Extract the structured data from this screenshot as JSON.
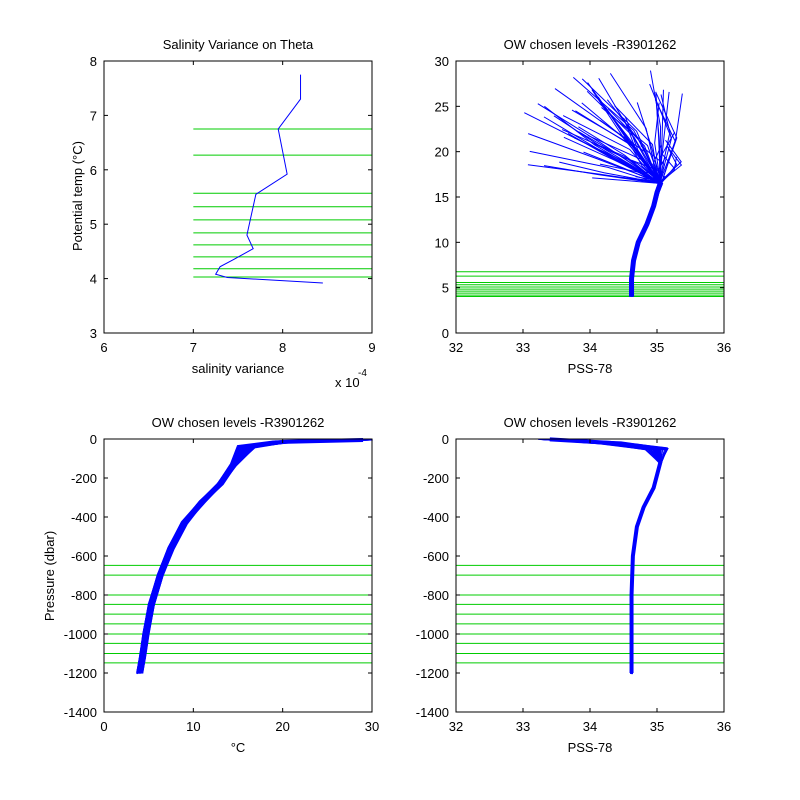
{
  "chart_data": [
    {
      "id": "salvar",
      "type": "line",
      "title": "Salinity Variance on Theta",
      "xlabel": "salinity variance",
      "ylabel": "Potential temp (°C)",
      "xlim": [
        6,
        9
      ],
      "ylim": [
        3,
        8
      ],
      "xticks": [
        "6",
        "7",
        "8",
        "9"
      ],
      "yticks": [
        "3",
        "4",
        "5",
        "6",
        "7",
        "8"
      ],
      "x_exponent_label": "x 10",
      "x_exponent_power": "-4",
      "series": [
        {
          "color": "#0000ff",
          "x": [
            8.2,
            8.2,
            7.95,
            8.05,
            7.7,
            7.6,
            7.67,
            7.45,
            7.3,
            7.25,
            7.38,
            8.45
          ],
          "y": [
            7.75,
            7.3,
            6.75,
            5.92,
            5.55,
            4.8,
            4.55,
            4.35,
            4.22,
            4.08,
            4.02,
            3.92
          ]
        }
      ],
      "level_lines": {
        "color": "#00cc00",
        "x_range": [
          7,
          9
        ],
        "y": [
          6.75,
          6.27,
          5.57,
          5.32,
          5.08,
          4.84,
          4.62,
          4.4,
          4.18,
          4.03
        ]
      }
    },
    {
      "id": "ts",
      "type": "line",
      "title": "OW chosen levels -R3901262",
      "xlabel": "PSS-78",
      "ylabel": "",
      "xlim": [
        32,
        36
      ],
      "ylim": [
        0,
        30
      ],
      "xticks": [
        "32",
        "33",
        "34",
        "35",
        "36"
      ],
      "yticks": [
        "0",
        "5",
        "10",
        "15",
        "20",
        "25",
        "30"
      ],
      "series": [
        {
          "color": "#0000ff",
          "description_count": 90,
          "x": [
            34.62,
            34.62,
            34.65,
            34.72,
            34.85,
            34.95,
            35.0,
            35.05
          ],
          "y": [
            4.0,
            6.0,
            8.0,
            10.0,
            12.0,
            14.0,
            15.5,
            16.5
          ],
          "surface_x_range": [
            33.0,
            35.4
          ],
          "surface_y_range": [
            17.0,
            29.0
          ]
        }
      ],
      "level_lines": {
        "color": "#00cc00",
        "x_range": [
          32,
          36
        ],
        "y": [
          6.75,
          6.27,
          5.57,
          5.32,
          5.08,
          4.84,
          4.62,
          4.4,
          4.18,
          4.03
        ]
      }
    },
    {
      "id": "temp",
      "type": "line",
      "title": "OW chosen levels -R3901262",
      "xlabel": "°C",
      "ylabel": "Pressure (dbar)",
      "xlim": [
        0,
        30
      ],
      "ylim": [
        -1400,
        0
      ],
      "xticks": [
        "0",
        "10",
        "20",
        "30"
      ],
      "yticks": [
        "0",
        "-200",
        "-400",
        "-600",
        "-800",
        "-1000",
        "-1200",
        "-1400"
      ],
      "series": [
        {
          "color": "#0000ff",
          "x": [
            29,
            20,
            16,
            14.5,
            13,
            11,
            9,
            7.5,
            6.3,
            5.3,
            4.7,
            4.3,
            4.0
          ],
          "y": [
            -5,
            -15,
            -40,
            -130,
            -230,
            -320,
            -430,
            -560,
            -700,
            -850,
            -1000,
            -1120,
            -1200
          ]
        }
      ],
      "level_lines": {
        "color": "#00cc00",
        "x_range": [
          0,
          30
        ],
        "y": [
          -648,
          -698,
          -800,
          -848,
          -898,
          -948,
          -1000,
          -1048,
          -1100,
          -1148
        ]
      }
    },
    {
      "id": "sal",
      "type": "line",
      "title": "OW chosen levels -R3901262",
      "xlabel": "PSS-78",
      "ylabel": "",
      "xlim": [
        32,
        36
      ],
      "ylim": [
        -1400,
        0
      ],
      "xticks": [
        "32",
        "33",
        "34",
        "35",
        "36"
      ],
      "yticks": [
        "0",
        "-200",
        "-400",
        "-600",
        "-800",
        "-1000",
        "-1200",
        "-1400"
      ],
      "series": [
        {
          "color": "#0000ff",
          "x": [
            33.4,
            34.3,
            35.0,
            35.05,
            34.95,
            34.8,
            34.7,
            34.64,
            34.62,
            34.62
          ],
          "y": [
            -2,
            -20,
            -50,
            -120,
            -250,
            -350,
            -450,
            -600,
            -800,
            -1200
          ]
        }
      ],
      "level_lines": {
        "color": "#00cc00",
        "x_range": [
          32,
          36
        ],
        "y": [
          -648,
          -698,
          -800,
          -848,
          -898,
          -948,
          -1000,
          -1048,
          -1100,
          -1148
        ]
      }
    }
  ]
}
